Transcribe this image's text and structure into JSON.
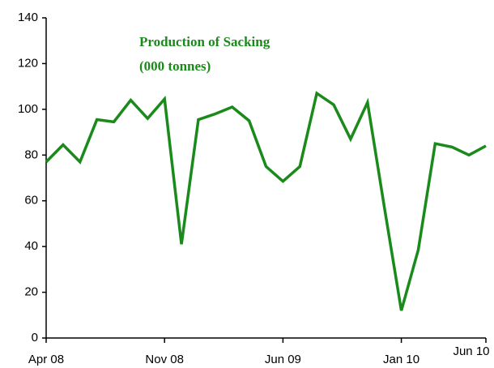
{
  "chart_data": {
    "type": "line",
    "title": "Production of Sacking",
    "subtitle": "(000 tonnes)",
    "categories": [
      "Apr 08",
      null,
      null,
      null,
      null,
      null,
      null,
      "Nov 08",
      null,
      null,
      null,
      null,
      null,
      null,
      "Jun 09",
      null,
      null,
      null,
      null,
      null,
      null,
      "Jan 10",
      null,
      null,
      null,
      null,
      "Jun 10"
    ],
    "series": [
      {
        "name": "Production of Sacking",
        "color": "#1a8a1a",
        "values": [
          77,
          84.5,
          77,
          95.5,
          94.5,
          104,
          96,
          104.5,
          41,
          95.5,
          98,
          101,
          95,
          75,
          68.5,
          75,
          107,
          102,
          87,
          103,
          57,
          12,
          38.5,
          85,
          83.5,
          80,
          84
        ]
      }
    ],
    "ylim": [
      0,
      140
    ],
    "yticks": [
      0,
      20,
      40,
      60,
      80,
      100,
      120,
      140
    ],
    "grid": false
  }
}
